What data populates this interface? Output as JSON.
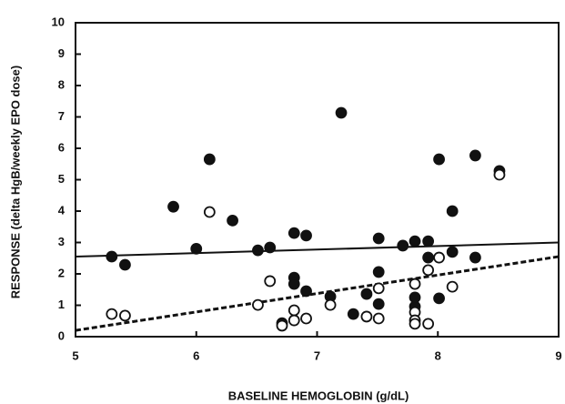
{
  "chart_data": {
    "type": "scatter",
    "x_label": "BASELINE HEMOGLOBIN (g/dL)",
    "y_label": "RESPONSE (delta HgB/weekly EPO dose)",
    "xlim": [
      5,
      9
    ],
    "xticks": [
      5,
      6,
      7,
      8,
      9
    ],
    "ylim": [
      0,
      10
    ],
    "yticks": [
      0,
      1,
      2,
      3,
      4,
      5,
      6,
      7,
      8,
      9,
      10
    ],
    "grid": false,
    "series": [
      {
        "marker": "filled",
        "color": "#111111",
        "x": [
          5.3,
          5.41,
          5.81,
          6.0,
          6.11,
          6.3,
          6.51,
          6.61,
          6.71,
          6.81,
          6.91,
          6.81,
          6.81,
          6.91,
          7.2,
          7.11,
          7.3,
          7.41,
          7.51,
          7.51,
          7.51,
          7.71,
          7.81,
          7.81,
          7.81,
          7.92,
          7.92,
          8.01,
          8.01,
          8.12,
          8.12,
          8.31,
          8.31,
          8.51
        ],
        "values": [
          2.55,
          2.29,
          4.14,
          2.8,
          5.65,
          3.7,
          2.75,
          2.84,
          0.43,
          3.3,
          3.22,
          1.88,
          1.68,
          1.45,
          7.13,
          1.28,
          0.72,
          1.36,
          3.13,
          2.06,
          1.04,
          2.9,
          3.04,
          1.25,
          0.96,
          3.04,
          2.52,
          5.65,
          1.22,
          2.7,
          4.0,
          5.77,
          2.52,
          5.28
        ]
      },
      {
        "marker": "open",
        "color": "#111111",
        "x": [
          5.3,
          5.41,
          6.11,
          6.51,
          6.61,
          6.71,
          6.81,
          6.81,
          6.91,
          7.11,
          7.41,
          7.51,
          7.51,
          7.81,
          7.81,
          7.81,
          7.81,
          7.92,
          7.92,
          8.01,
          8.12,
          8.51
        ],
        "values": [
          0.72,
          0.67,
          3.97,
          1.01,
          1.77,
          0.35,
          0.84,
          0.52,
          0.58,
          1.01,
          0.64,
          1.54,
          0.58,
          1.68,
          0.78,
          0.52,
          0.41,
          2.12,
          0.41,
          2.52,
          1.59,
          5.16
        ]
      }
    ],
    "lines": [
      {
        "style": "solid",
        "color": "#111111",
        "x": [
          5,
          9
        ],
        "values": [
          2.55,
          3.0
        ]
      },
      {
        "style": "dashed",
        "color": "#111111",
        "x": [
          5,
          9
        ],
        "values": [
          0.2,
          2.55
        ]
      }
    ]
  }
}
